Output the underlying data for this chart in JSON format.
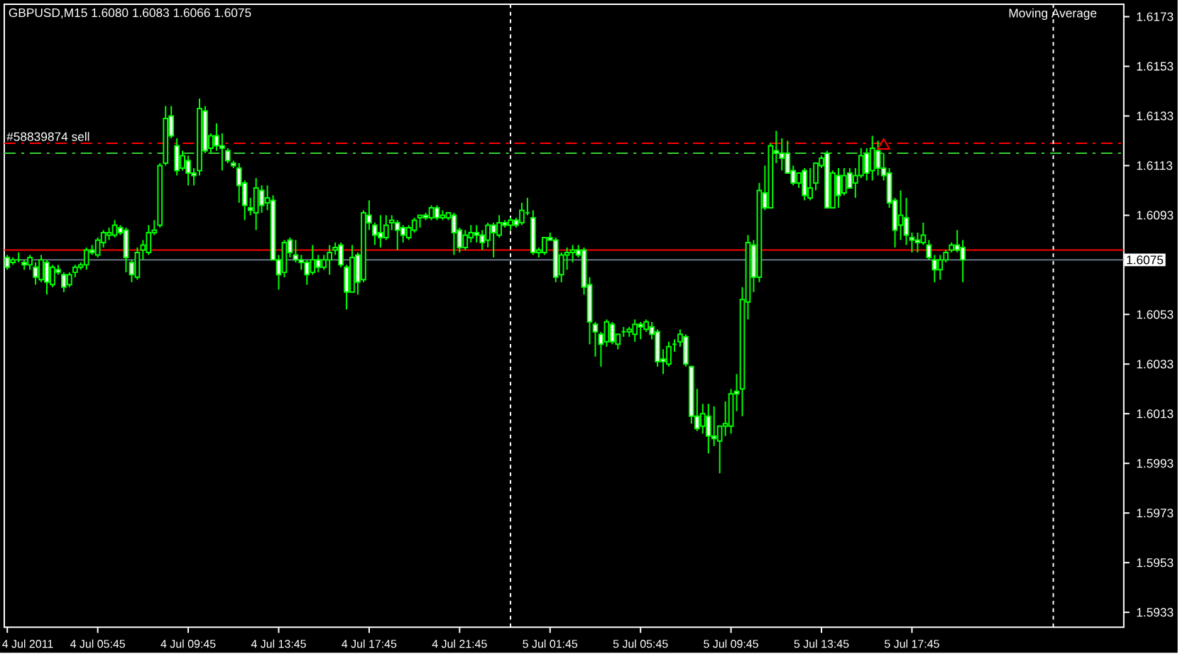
{
  "chart_data": {
    "type": "candlestick",
    "title": "GBPUSD,M15  1.6080 1.6083 1.6066 1.6075",
    "color": "#00ff00",
    "x": [
      "2011-07-04T01:45",
      "2011-07-04T02:00",
      "2011-07-04T02:15",
      "2011-07-04T02:30",
      "2011-07-04T02:45",
      "2011-07-04T03:00",
      "2011-07-04T03:15",
      "2011-07-04T03:30",
      "2011-07-04T03:45",
      "2011-07-04T04:00",
      "2011-07-04T04:15",
      "2011-07-04T04:30",
      "2011-07-04T04:45",
      "2011-07-04T05:00",
      "2011-07-04T05:15",
      "2011-07-04T05:30",
      "2011-07-04T05:45",
      "2011-07-04T06:00",
      "2011-07-04T06:15",
      "2011-07-04T06:30",
      "2011-07-04T06:45",
      "2011-07-04T07:00",
      "2011-07-04T07:15",
      "2011-07-04T07:30",
      "2011-07-04T07:45",
      "2011-07-04T08:00",
      "2011-07-04T08:15",
      "2011-07-04T08:30",
      "2011-07-04T08:45",
      "2011-07-04T09:00",
      "2011-07-04T09:15",
      "2011-07-04T09:30",
      "2011-07-04T09:45",
      "2011-07-04T10:00",
      "2011-07-04T10:15",
      "2011-07-04T10:30",
      "2011-07-04T10:45",
      "2011-07-04T11:00",
      "2011-07-04T11:15",
      "2011-07-04T11:30",
      "2011-07-04T11:45",
      "2011-07-04T12:00",
      "2011-07-04T12:15",
      "2011-07-04T12:30",
      "2011-07-04T12:45",
      "2011-07-04T13:00",
      "2011-07-04T13:15",
      "2011-07-04T13:30",
      "2011-07-04T13:45",
      "2011-07-04T14:00",
      "2011-07-04T14:15",
      "2011-07-04T14:30",
      "2011-07-04T14:45",
      "2011-07-04T15:00",
      "2011-07-04T15:15",
      "2011-07-04T15:30",
      "2011-07-04T15:45",
      "2011-07-04T16:00",
      "2011-07-04T16:15",
      "2011-07-04T16:30",
      "2011-07-04T16:45",
      "2011-07-04T17:00",
      "2011-07-04T17:15",
      "2011-07-04T17:30",
      "2011-07-04T17:45",
      "2011-07-04T18:00",
      "2011-07-04T18:15",
      "2011-07-04T18:30",
      "2011-07-04T18:45",
      "2011-07-04T19:00",
      "2011-07-04T19:15",
      "2011-07-04T19:30",
      "2011-07-04T19:45",
      "2011-07-04T20:00",
      "2011-07-04T20:15",
      "2011-07-04T20:30",
      "2011-07-04T20:45",
      "2011-07-04T21:00",
      "2011-07-04T21:15",
      "2011-07-04T21:30",
      "2011-07-04T21:45",
      "2011-07-04T22:00",
      "2011-07-04T22:15",
      "2011-07-04T22:30",
      "2011-07-04T22:45",
      "2011-07-04T23:00",
      "2011-07-04T23:15",
      "2011-07-04T23:30",
      "2011-07-04T23:45",
      "2011-07-05T00:00",
      "2011-07-05T00:15",
      "2011-07-05T00:30",
      "2011-07-05T00:45",
      "2011-07-05T01:00",
      "2011-07-05T01:15",
      "2011-07-05T01:30",
      "2011-07-05T01:45",
      "2011-07-05T02:00",
      "2011-07-05T02:15",
      "2011-07-05T02:30",
      "2011-07-05T02:45",
      "2011-07-05T03:00",
      "2011-07-05T03:15",
      "2011-07-05T03:30",
      "2011-07-05T03:45",
      "2011-07-05T04:00",
      "2011-07-05T04:15",
      "2011-07-05T04:30",
      "2011-07-05T04:45",
      "2011-07-05T05:00",
      "2011-07-05T05:15",
      "2011-07-05T05:30",
      "2011-07-05T05:45",
      "2011-07-05T06:00",
      "2011-07-05T06:15",
      "2011-07-05T06:30",
      "2011-07-05T06:45",
      "2011-07-05T07:00",
      "2011-07-05T07:15",
      "2011-07-05T07:30",
      "2011-07-05T07:45",
      "2011-07-05T08:00",
      "2011-07-05T08:15",
      "2011-07-05T08:30",
      "2011-07-05T08:45",
      "2011-07-05T09:00",
      "2011-07-05T09:15",
      "2011-07-05T09:30",
      "2011-07-05T09:45",
      "2011-07-05T10:00",
      "2011-07-05T10:15",
      "2011-07-05T10:30",
      "2011-07-05T10:45",
      "2011-07-05T11:00",
      "2011-07-05T11:15",
      "2011-07-05T11:30",
      "2011-07-05T11:45",
      "2011-07-05T12:00",
      "2011-07-05T12:15",
      "2011-07-05T12:30",
      "2011-07-05T12:45",
      "2011-07-05T13:00",
      "2011-07-05T13:15",
      "2011-07-05T13:30",
      "2011-07-05T13:45",
      "2011-07-05T14:00",
      "2011-07-05T14:15",
      "2011-07-05T14:30",
      "2011-07-05T14:45",
      "2011-07-05T15:00",
      "2011-07-05T15:15",
      "2011-07-05T15:30",
      "2011-07-05T15:45",
      "2011-07-05T16:00",
      "2011-07-05T16:15",
      "2011-07-05T16:30",
      "2011-07-05T16:45",
      "2011-07-05T17:00",
      "2011-07-05T17:15",
      "2011-07-05T17:30",
      "2011-07-05T17:45",
      "2011-07-05T18:00",
      "2011-07-05T18:15",
      "2011-07-05T18:30",
      "2011-07-05T18:45",
      "2011-07-05T19:00",
      "2011-07-05T19:15",
      "2011-07-05T19:30",
      "2011-07-05T19:45",
      "2011-07-05T20:00"
    ],
    "ohlc": [
      [
        1.6076,
        1.6077,
        1.6071,
        1.6072
      ],
      [
        1.6074,
        1.6076,
        1.6073,
        1.6075
      ],
      [
        1.6075,
        1.6078,
        1.6074,
        1.6075
      ],
      [
        1.6074,
        1.6075,
        1.6071,
        1.6073
      ],
      [
        1.6073,
        1.6077,
        1.6071,
        1.6076
      ],
      [
        1.6072,
        1.6074,
        1.6065,
        1.6068
      ],
      [
        1.6067,
        1.6077,
        1.6066,
        1.6075
      ],
      [
        1.6074,
        1.6075,
        1.6061,
        1.6066
      ],
      [
        1.6065,
        1.6073,
        1.6064,
        1.6072
      ],
      [
        1.6071,
        1.6073,
        1.6069,
        1.607
      ],
      [
        1.6069,
        1.607,
        1.6062,
        1.6064
      ],
      [
        1.6065,
        1.607,
        1.6064,
        1.6069
      ],
      [
        1.607,
        1.6073,
        1.6068,
        1.6072
      ],
      [
        1.6072,
        1.6074,
        1.6071,
        1.6073
      ],
      [
        1.6073,
        1.608,
        1.6071,
        1.6079
      ],
      [
        1.6079,
        1.6081,
        1.6077,
        1.6078
      ],
      [
        1.6077,
        1.6084,
        1.6076,
        1.6083
      ],
      [
        1.6082,
        1.6087,
        1.608,
        1.6086
      ],
      [
        1.6085,
        1.6088,
        1.6083,
        1.6086
      ],
      [
        1.6085,
        1.6091,
        1.6084,
        1.6089
      ],
      [
        1.6088,
        1.6089,
        1.6085,
        1.6086
      ],
      [
        1.6087,
        1.6088,
        1.607,
        1.6076
      ],
      [
        1.6074,
        1.6075,
        1.6066,
        1.6069
      ],
      [
        1.6068,
        1.608,
        1.6067,
        1.6078
      ],
      [
        1.6079,
        1.6083,
        1.6075,
        1.6081
      ],
      [
        1.6078,
        1.6089,
        1.6077,
        1.6086
      ],
      [
        1.6086,
        1.6091,
        1.6085,
        1.6087
      ],
      [
        1.6089,
        1.6114,
        1.6088,
        1.6113
      ],
      [
        1.6114,
        1.6137,
        1.6113,
        1.6132
      ],
      [
        1.6133,
        1.6137,
        1.6124,
        1.6125
      ],
      [
        1.6121,
        1.6124,
        1.6109,
        1.6111
      ],
      [
        1.6112,
        1.6119,
        1.6111,
        1.6117
      ],
      [
        1.6115,
        1.6117,
        1.6105,
        1.611
      ],
      [
        1.611,
        1.6112,
        1.6105,
        1.6109
      ],
      [
        1.6111,
        1.614,
        1.6109,
        1.6136
      ],
      [
        1.6135,
        1.6137,
        1.6118,
        1.6119
      ],
      [
        1.612,
        1.6126,
        1.6118,
        1.6125
      ],
      [
        1.6125,
        1.613,
        1.6119,
        1.6121
      ],
      [
        1.6121,
        1.6126,
        1.6111,
        1.612
      ],
      [
        1.6119,
        1.612,
        1.6114,
        1.6115
      ],
      [
        1.6114,
        1.6115,
        1.6112,
        1.6113
      ],
      [
        1.6112,
        1.6114,
        1.6098,
        1.6105
      ],
      [
        1.6106,
        1.6107,
        1.6091,
        1.6097
      ],
      [
        1.6096,
        1.61,
        1.6093,
        1.6095
      ],
      [
        1.6094,
        1.6108,
        1.6087,
        1.6104
      ],
      [
        1.6103,
        1.6105,
        1.6094,
        1.6097
      ],
      [
        1.6098,
        1.6105,
        1.6095,
        1.61
      ],
      [
        1.6099,
        1.6101,
        1.6075,
        1.6075
      ],
      [
        1.6075,
        1.6077,
        1.6063,
        1.6069
      ],
      [
        1.607,
        1.6083,
        1.6068,
        1.6082
      ],
      [
        1.6083,
        1.6084,
        1.6076,
        1.6078
      ],
      [
        1.6077,
        1.6083,
        1.6074,
        1.6075
      ],
      [
        1.6075,
        1.6077,
        1.6071,
        1.6074
      ],
      [
        1.6074,
        1.6075,
        1.6065,
        1.6069
      ],
      [
        1.607,
        1.6081,
        1.6069,
        1.6075
      ],
      [
        1.6075,
        1.6077,
        1.607,
        1.6072
      ],
      [
        1.6072,
        1.6077,
        1.6071,
        1.6075
      ],
      [
        1.6075,
        1.6081,
        1.6069,
        1.6078
      ],
      [
        1.6079,
        1.6082,
        1.6077,
        1.608
      ],
      [
        1.6081,
        1.6082,
        1.6072,
        1.6073
      ],
      [
        1.6072,
        1.6073,
        1.6055,
        1.6062
      ],
      [
        1.6062,
        1.6081,
        1.6062,
        1.6076
      ],
      [
        1.6077,
        1.6078,
        1.6061,
        1.6066
      ],
      [
        1.6067,
        1.6095,
        1.6066,
        1.6094
      ],
      [
        1.6093,
        1.6099,
        1.6087,
        1.609
      ],
      [
        1.6089,
        1.609,
        1.6081,
        1.6085
      ],
      [
        1.6086,
        1.6093,
        1.608,
        1.6084
      ],
      [
        1.6084,
        1.6093,
        1.6083,
        1.6089
      ],
      [
        1.609,
        1.6093,
        1.6087,
        1.6091
      ],
      [
        1.609,
        1.6091,
        1.6079,
        1.6087
      ],
      [
        1.6088,
        1.6089,
        1.6082,
        1.6085
      ],
      [
        1.6084,
        1.6089,
        1.6083,
        1.6088
      ],
      [
        1.6087,
        1.6092,
        1.6086,
        1.6091
      ],
      [
        1.6092,
        1.6093,
        1.6088,
        1.6093
      ],
      [
        1.6093,
        1.6094,
        1.6091,
        1.6092
      ],
      [
        1.6092,
        1.6097,
        1.6091,
        1.6096
      ],
      [
        1.6096,
        1.6097,
        1.6091,
        1.6092
      ],
      [
        1.6092,
        1.6095,
        1.6091,
        1.6093
      ],
      [
        1.6092,
        1.6094,
        1.6091,
        1.6094
      ],
      [
        1.6093,
        1.6094,
        1.6077,
        1.6086
      ],
      [
        1.6087,
        1.6088,
        1.6078,
        1.608
      ],
      [
        1.608,
        1.6087,
        1.6079,
        1.6085
      ],
      [
        1.6084,
        1.6089,
        1.6082,
        1.6086
      ],
      [
        1.6086,
        1.6089,
        1.6082,
        1.6085
      ],
      [
        1.6085,
        1.6087,
        1.6079,
        1.6082
      ],
      [
        1.6083,
        1.609,
        1.608,
        1.6089
      ],
      [
        1.6089,
        1.609,
        1.6076,
        1.6086
      ],
      [
        1.6085,
        1.6093,
        1.6084,
        1.609
      ],
      [
        1.609,
        1.6091,
        1.6088,
        1.6089
      ],
      [
        1.6089,
        1.6092,
        1.6087,
        1.6091
      ],
      [
        1.6091,
        1.6092,
        1.6088,
        1.6089
      ],
      [
        1.609,
        1.6098,
        1.6089,
        1.6095
      ],
      [
        1.6094,
        1.61,
        1.6093,
        1.6094
      ],
      [
        1.6092,
        1.6095,
        1.6077,
        1.6078
      ],
      [
        1.6078,
        1.608,
        1.6076,
        1.6079
      ],
      [
        1.6078,
        1.6084,
        1.6077,
        1.6084
      ],
      [
        1.6084,
        1.6086,
        1.6083,
        1.6083
      ],
      [
        1.6083,
        1.6084,
        1.6066,
        1.6068
      ],
      [
        1.6069,
        1.6078,
        1.6066,
        1.6077
      ],
      [
        1.6077,
        1.608,
        1.6071,
        1.6078
      ],
      [
        1.6078,
        1.6081,
        1.6074,
        1.6079
      ],
      [
        1.6079,
        1.6081,
        1.6076,
        1.6077
      ],
      [
        1.6079,
        1.608,
        1.6061,
        1.6064
      ],
      [
        1.6065,
        1.6068,
        1.6041,
        1.605
      ],
      [
        1.6049,
        1.605,
        1.6036,
        1.6046
      ],
      [
        1.6045,
        1.6046,
        1.6032,
        1.6041
      ],
      [
        1.6042,
        1.6051,
        1.604,
        1.605
      ],
      [
        1.6049,
        1.605,
        1.6041,
        1.6042
      ],
      [
        1.6041,
        1.6045,
        1.6039,
        1.6045
      ],
      [
        1.6046,
        1.6048,
        1.6044,
        1.6046
      ],
      [
        1.6046,
        1.6048,
        1.6044,
        1.6047
      ],
      [
        1.6045,
        1.6051,
        1.6042,
        1.6049
      ],
      [
        1.6049,
        1.605,
        1.6043,
        1.6048
      ],
      [
        1.6047,
        1.6051,
        1.6046,
        1.605
      ],
      [
        1.6048,
        1.605,
        1.6043,
        1.6045
      ],
      [
        1.6046,
        1.6047,
        1.6032,
        1.6034
      ],
      [
        1.6035,
        1.6039,
        1.6029,
        1.6034
      ],
      [
        1.6033,
        1.6042,
        1.6032,
        1.604
      ],
      [
        1.6041,
        1.6043,
        1.6038,
        1.6041
      ],
      [
        1.6042,
        1.6047,
        1.604,
        1.6045
      ],
      [
        1.6044,
        1.6045,
        1.6032,
        1.6033
      ],
      [
        1.6032,
        1.6032,
        1.6009,
        1.6012
      ],
      [
        1.6012,
        1.6023,
        1.6006,
        1.6007
      ],
      [
        1.6008,
        1.6017,
        1.6005,
        1.6013
      ],
      [
        1.6012,
        1.6017,
        1.5997,
        1.6004
      ],
      [
        1.6004,
        1.6016,
        1.6,
        1.6003
      ],
      [
        1.6002,
        1.6008,
        1.5989,
        1.6008
      ],
      [
        1.6008,
        1.6018,
        1.6004,
        1.6009
      ],
      [
        1.6008,
        1.6023,
        1.6005,
        1.6021
      ],
      [
        1.6022,
        1.6029,
        1.6014,
        1.6021
      ],
      [
        1.6023,
        1.6064,
        1.6012,
        1.6059
      ],
      [
        1.6058,
        1.6085,
        1.6051,
        1.6082
      ],
      [
        1.6081,
        1.6083,
        1.6062,
        1.6068
      ],
      [
        1.6068,
        1.6106,
        1.6066,
        1.6103
      ],
      [
        1.6102,
        1.6113,
        1.6095,
        1.6096
      ],
      [
        1.6096,
        1.6122,
        1.6096,
        1.6121
      ],
      [
        1.6119,
        1.6127,
        1.6114,
        1.6118
      ],
      [
        1.6118,
        1.6124,
        1.6111,
        1.6116
      ],
      [
        1.6118,
        1.6123,
        1.611,
        1.611
      ],
      [
        1.6111,
        1.6113,
        1.6105,
        1.6106
      ],
      [
        1.6106,
        1.611,
        1.6104,
        1.611
      ],
      [
        1.6111,
        1.6112,
        1.6099,
        1.6101
      ],
      [
        1.61,
        1.6112,
        1.6099,
        1.6104
      ],
      [
        1.6106,
        1.6114,
        1.6103,
        1.6114
      ],
      [
        1.6113,
        1.6117,
        1.6112,
        1.6116
      ],
      [
        1.6118,
        1.6119,
        1.6096,
        1.6096
      ],
      [
        1.6096,
        1.6111,
        1.6096,
        1.611
      ],
      [
        1.6109,
        1.6112,
        1.6096,
        1.6101
      ],
      [
        1.6102,
        1.6112,
        1.6101,
        1.6109
      ],
      [
        1.611,
        1.6112,
        1.6104,
        1.6104
      ],
      [
        1.6106,
        1.6112,
        1.61,
        1.6109
      ],
      [
        1.6109,
        1.612,
        1.6108,
        1.6117
      ],
      [
        1.6118,
        1.612,
        1.6107,
        1.611
      ],
      [
        1.6111,
        1.6125,
        1.6107,
        1.612
      ],
      [
        1.6119,
        1.6123,
        1.6109,
        1.6112
      ],
      [
        1.6112,
        1.6118,
        1.6107,
        1.6109
      ],
      [
        1.611,
        1.6112,
        1.6096,
        1.6098
      ],
      [
        1.6099,
        1.61,
        1.608,
        1.6087
      ],
      [
        1.6089,
        1.6103,
        1.6083,
        1.6093
      ],
      [
        1.6092,
        1.61,
        1.6081,
        1.6085
      ],
      [
        1.6084,
        1.6086,
        1.6078,
        1.6083
      ],
      [
        1.6083,
        1.6086,
        1.6078,
        1.6082
      ],
      [
        1.6082,
        1.609,
        1.6081,
        1.6085
      ],
      [
        1.6081,
        1.6083,
        1.6075,
        1.6076
      ],
      [
        1.6075,
        1.6077,
        1.6066,
        1.6071
      ],
      [
        1.6071,
        1.6077,
        1.6067,
        1.6075
      ],
      [
        1.6075,
        1.6079,
        1.6074,
        1.6078
      ],
      [
        1.6079,
        1.6082,
        1.6078,
        1.6081
      ],
      [
        1.6081,
        1.6087,
        1.6078,
        1.6079
      ],
      [
        1.608,
        1.6083,
        1.6066,
        1.6075
      ]
    ],
    "series": [
      {
        "type": "scatter",
        "x": [
          "2011-07-05T16:30"
        ],
        "values": [
          1.6121
        ],
        "color": "#ff0000",
        "marker": "triangle"
      }
    ],
    "xlim": [
      "2011-07-04T01:37",
      "2011-07-06T03:07"
    ],
    "xticks": [
      {
        "value": "2011-07-04T01:45",
        "label": "4 Jul 2011"
      },
      {
        "value": "2011-07-04T05:45",
        "label": "4 Jul 05:45"
      },
      {
        "value": "2011-07-04T09:45",
        "label": "4 Jul 09:45"
      },
      {
        "value": "2011-07-04T13:45",
        "label": "4 Jul 13:45"
      },
      {
        "value": "2011-07-04T17:45",
        "label": "4 Jul 17:45"
      },
      {
        "value": "2011-07-04T21:45",
        "label": "4 Jul 21:45"
      },
      {
        "value": "2011-07-05T01:45",
        "label": "5 Jul 01:45"
      },
      {
        "value": "2011-07-05T05:45",
        "label": "5 Jul 05:45"
      },
      {
        "value": "2011-07-05T09:45",
        "label": "5 Jul 09:45"
      },
      {
        "value": "2011-07-05T13:45",
        "label": "5 Jul 13:45"
      },
      {
        "value": "2011-07-05T17:45",
        "label": "5 Jul 17:45"
      }
    ],
    "ylim": [
      1.5927,
      1.6178
    ],
    "yticks": [
      1.6173,
      1.6153,
      1.6133,
      1.6113,
      1.6093,
      1.6053,
      1.6033,
      1.6013,
      1.5993,
      1.5973,
      1.5953,
      1.5933
    ],
    "ref_lines": [
      {
        "axis": "y",
        "value": 1.6122,
        "label": "#58839874 sell",
        "color": "#ff0000",
        "line_style": "dashdot"
      },
      {
        "axis": "y",
        "value": 1.6118,
        "color": "#32cd32",
        "line_style": "dashdot"
      },
      {
        "axis": "y",
        "value": 1.6079,
        "color": "#ff0000",
        "line_style": "solid"
      },
      {
        "axis": "y",
        "value": 1.6075,
        "label": "1.6075",
        "color": "#778899",
        "line_style": "solid"
      },
      {
        "axis": "x",
        "value": "2011-07-05T00:00",
        "color": "#ffffff",
        "line_style": "dashed"
      },
      {
        "axis": "x",
        "value": "2011-07-06T00:00",
        "color": "#ffffff",
        "line_style": "dashed"
      }
    ],
    "annotations": [
      "Moving Average"
    ]
  }
}
